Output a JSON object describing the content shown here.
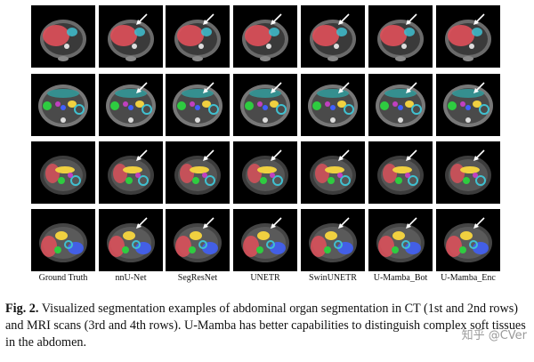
{
  "figure": {
    "columns": [
      "Ground Truth",
      "nnU-Net",
      "SegResNet",
      "UNETR",
      "SwinUNETR",
      "U-Mamba_Bot",
      "U-Mamba_Enc"
    ],
    "rows": [
      {
        "modality": "CT",
        "arrows": [
          false,
          true,
          true,
          true,
          true,
          true,
          true
        ]
      },
      {
        "modality": "CT",
        "arrows": [
          false,
          true,
          true,
          true,
          true,
          true,
          true
        ]
      },
      {
        "modality": "MRI",
        "arrows": [
          false,
          true,
          true,
          true,
          true,
          true,
          true
        ]
      },
      {
        "modality": "MRI",
        "arrows": [
          false,
          true,
          true,
          true,
          true,
          true,
          true
        ]
      }
    ]
  },
  "caption": {
    "label": "Fig. 2.",
    "text": " Visualized segmentation examples of abdominal organ segmentation in CT (1st and 2nd rows) and MRI scans (3rd and 4th rows). U-Mamba has better capabilities to distinguish complex soft tissues in the abdomen."
  },
  "watermark": "知乎 @CVer",
  "colors": {
    "liver": "#e0505a",
    "spleen": "#2ecc40",
    "kidney": "#40c0d0",
    "pancreas": "#f0d040",
    "stomach": "#30a0a0",
    "aorta": "#c040c0",
    "vena": "#4060ff",
    "arrow": "#ffffff"
  }
}
